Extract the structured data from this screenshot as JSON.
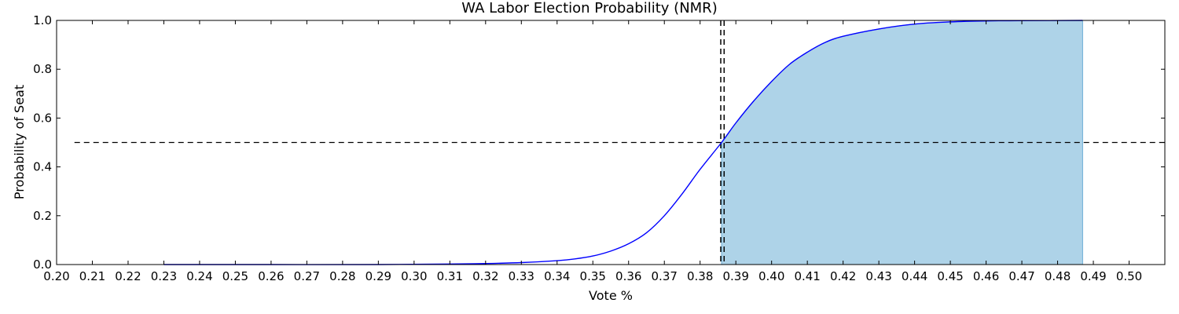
{
  "chart_data": {
    "type": "line",
    "title": "WA Labor Election Probability (NMR)",
    "xlabel": "Vote %",
    "ylabel": "Probability of Seat",
    "xlim": [
      0.2,
      0.51
    ],
    "ylim": [
      0.0,
      1.0
    ],
    "x_ticks": [
      "0.20",
      "0.21",
      "0.22",
      "0.23",
      "0.24",
      "0.25",
      "0.26",
      "0.27",
      "0.28",
      "0.29",
      "0.30",
      "0.31",
      "0.32",
      "0.33",
      "0.34",
      "0.35",
      "0.36",
      "0.37",
      "0.38",
      "0.39",
      "0.40",
      "0.41",
      "0.42",
      "0.43",
      "0.44",
      "0.45",
      "0.46",
      "0.47",
      "0.48",
      "0.49",
      "0.50"
    ],
    "y_ticks": [
      "0.0",
      "0.2",
      "0.4",
      "0.6",
      "0.8",
      "1.0"
    ],
    "grid": false,
    "legend": "none",
    "series": [
      {
        "x": [
          0.23,
          0.26,
          0.29,
          0.31,
          0.32,
          0.33,
          0.34,
          0.345,
          0.35,
          0.355,
          0.36,
          0.365,
          0.37,
          0.375,
          0.38,
          0.386,
          0.39,
          0.395,
          0.4,
          0.405,
          0.41,
          0.415,
          0.42,
          0.43,
          0.44,
          0.45,
          0.46,
          0.47,
          0.487
        ],
        "y": [
          0.0,
          0.0,
          0.0,
          0.002,
          0.004,
          0.008,
          0.016,
          0.023,
          0.035,
          0.055,
          0.085,
          0.13,
          0.2,
          0.29,
          0.39,
          0.5,
          0.58,
          0.67,
          0.75,
          0.82,
          0.87,
          0.91,
          0.935,
          0.965,
          0.985,
          0.994,
          0.998,
          0.999,
          1.0
        ],
        "color": "#0000ff"
      }
    ],
    "shaded_region": {
      "x_start": 0.386,
      "x_end": 0.487,
      "color": "#6baed6",
      "opacity": 0.55
    },
    "reference_lines": [
      {
        "orientation": "horizontal",
        "y": 0.5,
        "x_start": 0.205,
        "x_end": 0.51,
        "style": "dashed"
      },
      {
        "orientation": "vertical",
        "x": 0.386,
        "style": "dashed"
      },
      {
        "orientation": "vertical",
        "x": 0.3865,
        "style": "dashed"
      }
    ]
  }
}
